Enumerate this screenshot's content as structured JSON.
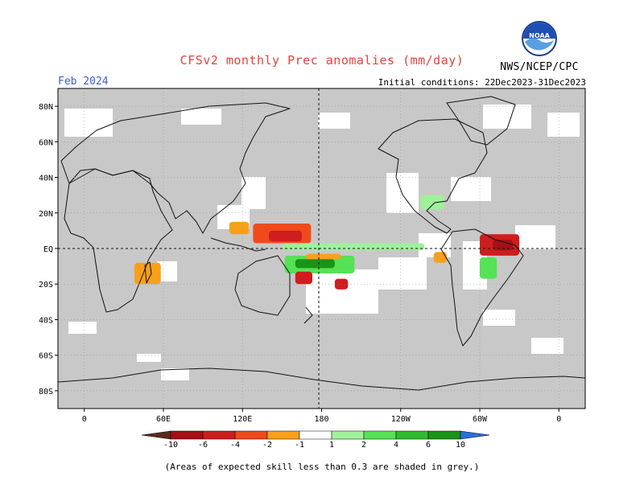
{
  "header": {
    "title": "CFSv2 monthly Prec anomalies (mm/day)",
    "month": "Feb 2024",
    "initial_conditions": "Initial conditions: 22Dec2023-31Dec2023",
    "agency": "NWS/NCEP/CPC",
    "logo_text": "NOAA"
  },
  "map": {
    "lat_labels": [
      "80N",
      "60N",
      "40N",
      "20N",
      "EQ",
      "20S",
      "40S",
      "60S",
      "80S"
    ],
    "lat_values": [
      80,
      60,
      40,
      20,
      0,
      -20,
      -40,
      -60,
      -80
    ],
    "lon_labels": [
      "0",
      "60E",
      "120E",
      "180",
      "120W",
      "60W",
      "0"
    ],
    "lon_values": [
      0,
      60,
      120,
      180,
      240,
      300,
      360
    ],
    "lon_range": [
      -20,
      380
    ],
    "lat_range": [
      -90,
      90
    ],
    "colors": {
      "skill_grey": "#c8c8c8",
      "coast": "#111111",
      "grid": "#888888"
    },
    "anomaly_regions": [
      {
        "name": "western-pacific-dry",
        "lon": [
          128,
          172
        ],
        "lat": [
          3,
          14
        ],
        "value": -3
      },
      {
        "name": "western-pacific-dry-core",
        "lon": [
          140,
          165
        ],
        "lat": [
          4,
          10
        ],
        "value": -5
      },
      {
        "name": "philippines-dry",
        "lon": [
          110,
          125
        ],
        "lat": [
          8,
          15
        ],
        "value": -1.5
      },
      {
        "name": "equatorial-pacific-wet-band",
        "lon": [
          150,
          258
        ],
        "lat": [
          -1,
          3
        ],
        "value": 1.5
      },
      {
        "name": "south-pacific-wet",
        "lon": [
          152,
          205
        ],
        "lat": [
          -14,
          -4
        ],
        "value": 3
      },
      {
        "name": "south-pacific-wet-core",
        "lon": [
          160,
          190
        ],
        "lat": [
          -11,
          -6
        ],
        "value": 8
      },
      {
        "name": "south-pacific-dry",
        "lon": [
          168,
          195
        ],
        "lat": [
          -6,
          -3
        ],
        "value": -1.5
      },
      {
        "name": "coral-sea-dry",
        "lon": [
          160,
          173
        ],
        "lat": [
          -20,
          -13
        ],
        "value": -4
      },
      {
        "name": "fiji-dry",
        "lon": [
          190,
          200
        ],
        "lat": [
          -23,
          -17
        ],
        "value": -4
      },
      {
        "name": "brazil-dry",
        "lon": [
          300,
          330
        ],
        "lat": [
          -4,
          8
        ],
        "value": -4
      },
      {
        "name": "brazil-dry-core",
        "lon": [
          310,
          325
        ],
        "lat": [
          -1,
          5
        ],
        "value": -6
      },
      {
        "name": "east-pacific-dry",
        "lon": [
          265,
          275
        ],
        "lat": [
          -8,
          -2
        ],
        "value": -1.5
      },
      {
        "name": "brazil-wet",
        "lon": [
          300,
          313
        ],
        "lat": [
          -17,
          -5
        ],
        "value": 2
      },
      {
        "name": "gulf-of-mexico-wet",
        "lon": [
          255,
          273
        ],
        "lat": [
          22,
          30
        ],
        "value": 1.5
      },
      {
        "name": "indian-ocean-dry",
        "lon": [
          38,
          58
        ],
        "lat": [
          -20,
          -8
        ],
        "value": -1.5
      }
    ]
  },
  "colorbar": {
    "ticks": [
      "-10",
      "-6",
      "-4",
      "-2",
      "-1",
      "1",
      "2",
      "4",
      "6",
      "10"
    ],
    "colors": [
      "#5c2a1e",
      "#a50f15",
      "#cf1d1d",
      "#f04a1c",
      "#f9a01a",
      "#ffffff",
      "#9ff19a",
      "#55e255",
      "#2fbb2f",
      "#189418",
      "#2b6edb"
    ]
  },
  "footnote": "(Areas of expected skill less than 0.3 are shaded in grey.)"
}
